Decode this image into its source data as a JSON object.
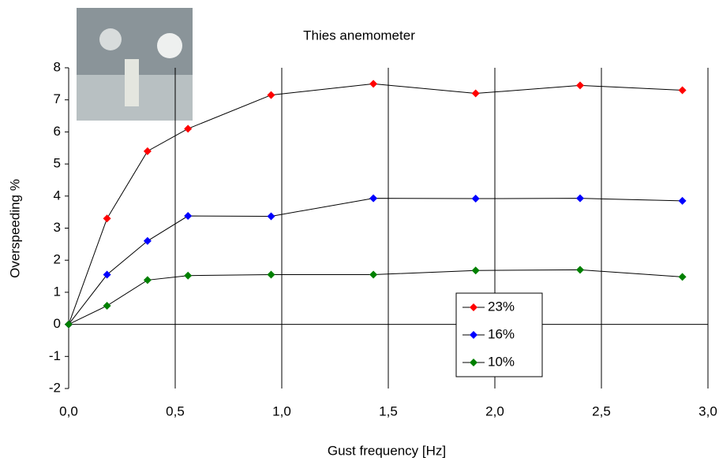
{
  "chart_data": {
    "type": "line",
    "title": "Thies anemometer",
    "xlabel": "Gust frequency [Hz]",
    "ylabel": "Overspeeding %",
    "x": [
      0,
      0.18,
      0.37,
      0.56,
      0.95,
      1.43,
      1.91,
      2.4,
      2.88
    ],
    "series": [
      {
        "name": "23%",
        "color": "#ff0000",
        "values": [
          0,
          3.3,
          5.4,
          6.1,
          7.15,
          7.5,
          7.2,
          7.45,
          7.3
        ]
      },
      {
        "name": "16%",
        "color": "#0000ff",
        "values": [
          0,
          1.55,
          2.6,
          3.38,
          3.37,
          3.93,
          3.92,
          3.93,
          3.85
        ]
      },
      {
        "name": "10%",
        "color": "#008000",
        "values": [
          0,
          0.58,
          1.38,
          1.52,
          1.55,
          1.55,
          1.68,
          1.7,
          1.48
        ]
      }
    ],
    "xlim": [
      0,
      3
    ],
    "xticks": [
      {
        "value": 0,
        "label": "0,0"
      },
      {
        "value": 0.5,
        "label": "0,5"
      },
      {
        "value": 1,
        "label": "1,0"
      },
      {
        "value": 1.5,
        "label": "1,5"
      },
      {
        "value": 2,
        "label": "2,0"
      },
      {
        "value": 2.5,
        "label": "2,5"
      },
      {
        "value": 3,
        "label": "3,0"
      }
    ],
    "ylim": [
      -2,
      8
    ],
    "yticks": [
      -2,
      -1,
      0,
      1,
      2,
      3,
      4,
      5,
      6,
      7,
      8
    ],
    "grid": true
  }
}
